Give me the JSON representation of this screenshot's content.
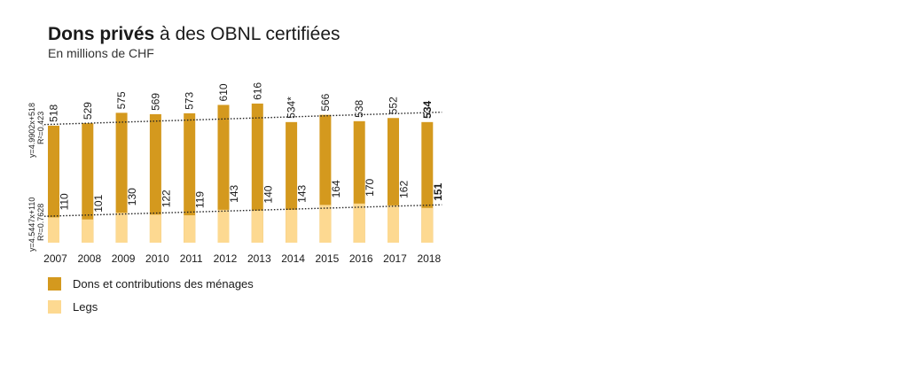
{
  "header": {
    "title_bold": "Dons privés",
    "title_rest": " à des OBNL certifiées",
    "subtitle": "En millions de CHF"
  },
  "colors": {
    "donations": "#d4991e",
    "legs": "#fdd991",
    "trend": "#222222"
  },
  "regression": {
    "donations": {
      "equation": "y=4.9902x+518",
      "r2": "R²=0.423"
    },
    "legs": {
      "equation": "y=4.5447x+110",
      "r2": "R²=0.7628"
    }
  },
  "chart_data": {
    "type": "bar",
    "categories": [
      "2007",
      "2008",
      "2009",
      "2010",
      "2011",
      "2012",
      "2013",
      "2014",
      "2015",
      "2016",
      "2017",
      "2018"
    ],
    "series": [
      {
        "name": "Dons et contributions des ménages",
        "values": [
          518,
          529,
          575,
          569,
          573,
          610,
          616,
          534,
          566,
          538,
          552,
          534
        ],
        "labels": [
          "518",
          "529",
          "575",
          "569",
          "573",
          "610",
          "616",
          "534*",
          "566",
          "538",
          "552",
          "534"
        ]
      },
      {
        "name": "Legs",
        "values": [
          110,
          101,
          130,
          122,
          119,
          143,
          140,
          143,
          164,
          170,
          162,
          151
        ],
        "labels": [
          "110",
          "101",
          "130",
          "122",
          "119",
          "143",
          "140",
          "143",
          "164",
          "170",
          "162",
          "151"
        ]
      }
    ],
    "trendlines": [
      {
        "series": "Dons et contributions des ménages",
        "slope": 4.9902,
        "intercept": 518
      },
      {
        "series": "Legs",
        "slope": 4.5447,
        "intercept": 110
      }
    ],
    "legend_position": "bottom-left",
    "grid": false
  }
}
